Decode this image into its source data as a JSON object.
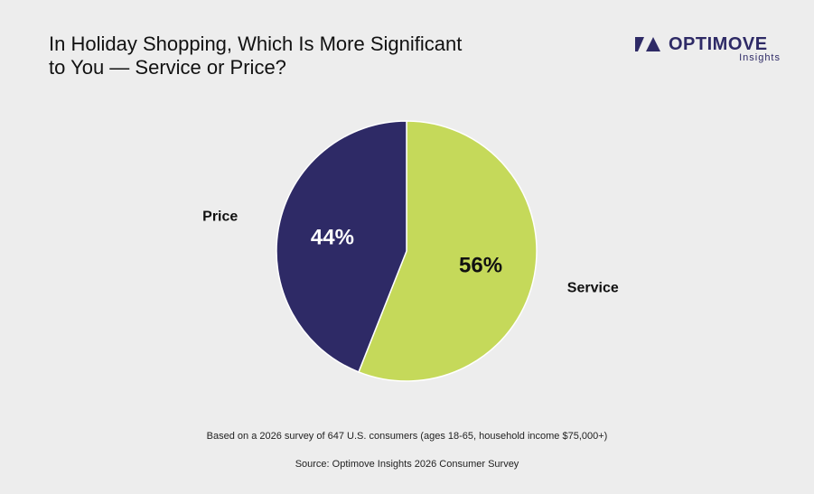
{
  "header": {
    "title_line1": "In Holiday Shopping, Which Is More Significant",
    "title_line2": "to You — Service or Price?"
  },
  "logo": {
    "brand": "OPTIMOVE",
    "subtitle": "Insights",
    "color": "#2e2a66"
  },
  "chart_data": {
    "type": "pie",
    "title": "In Holiday Shopping, Which Is More Significant to You — Service or Price?",
    "slices": [
      {
        "label": "Service",
        "value": 56,
        "value_label": "56%",
        "color": "#c5d95a",
        "text_color": "#111111"
      },
      {
        "label": "Price",
        "value": 44,
        "value_label": "44%",
        "color": "#2e2a66",
        "text_color": "#ffffff"
      }
    ],
    "legend": "none"
  },
  "footer": {
    "note": "Based on a 2026 survey of 647 U.S. consumers (ages 18-65, household income $75,000+)",
    "source": "Source: Optimove Insights 2026 Consumer Survey"
  }
}
